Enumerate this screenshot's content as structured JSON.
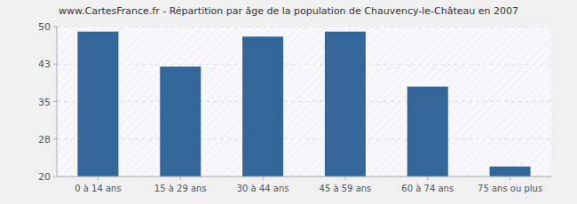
{
  "chart_data": {
    "type": "bar",
    "title": "www.CartesFrance.fr - Répartition par âge de la population de Chauvency-le-Château en 2007",
    "categories": [
      "0 à 14 ans",
      "15 à 29 ans",
      "30 à 44 ans",
      "45 à 59 ans",
      "60 à 74 ans",
      "75 ans ou plus"
    ],
    "values": [
      49,
      42,
      48,
      49,
      38,
      22
    ],
    "color": "#336699",
    "ylim": [
      20,
      50
    ],
    "yticks": [
      20,
      {
        "value": 27.5,
        "label": "28"
      },
      35,
      {
        "value": 42.5,
        "label": "43"
      },
      50
    ],
    "grid": true
  }
}
